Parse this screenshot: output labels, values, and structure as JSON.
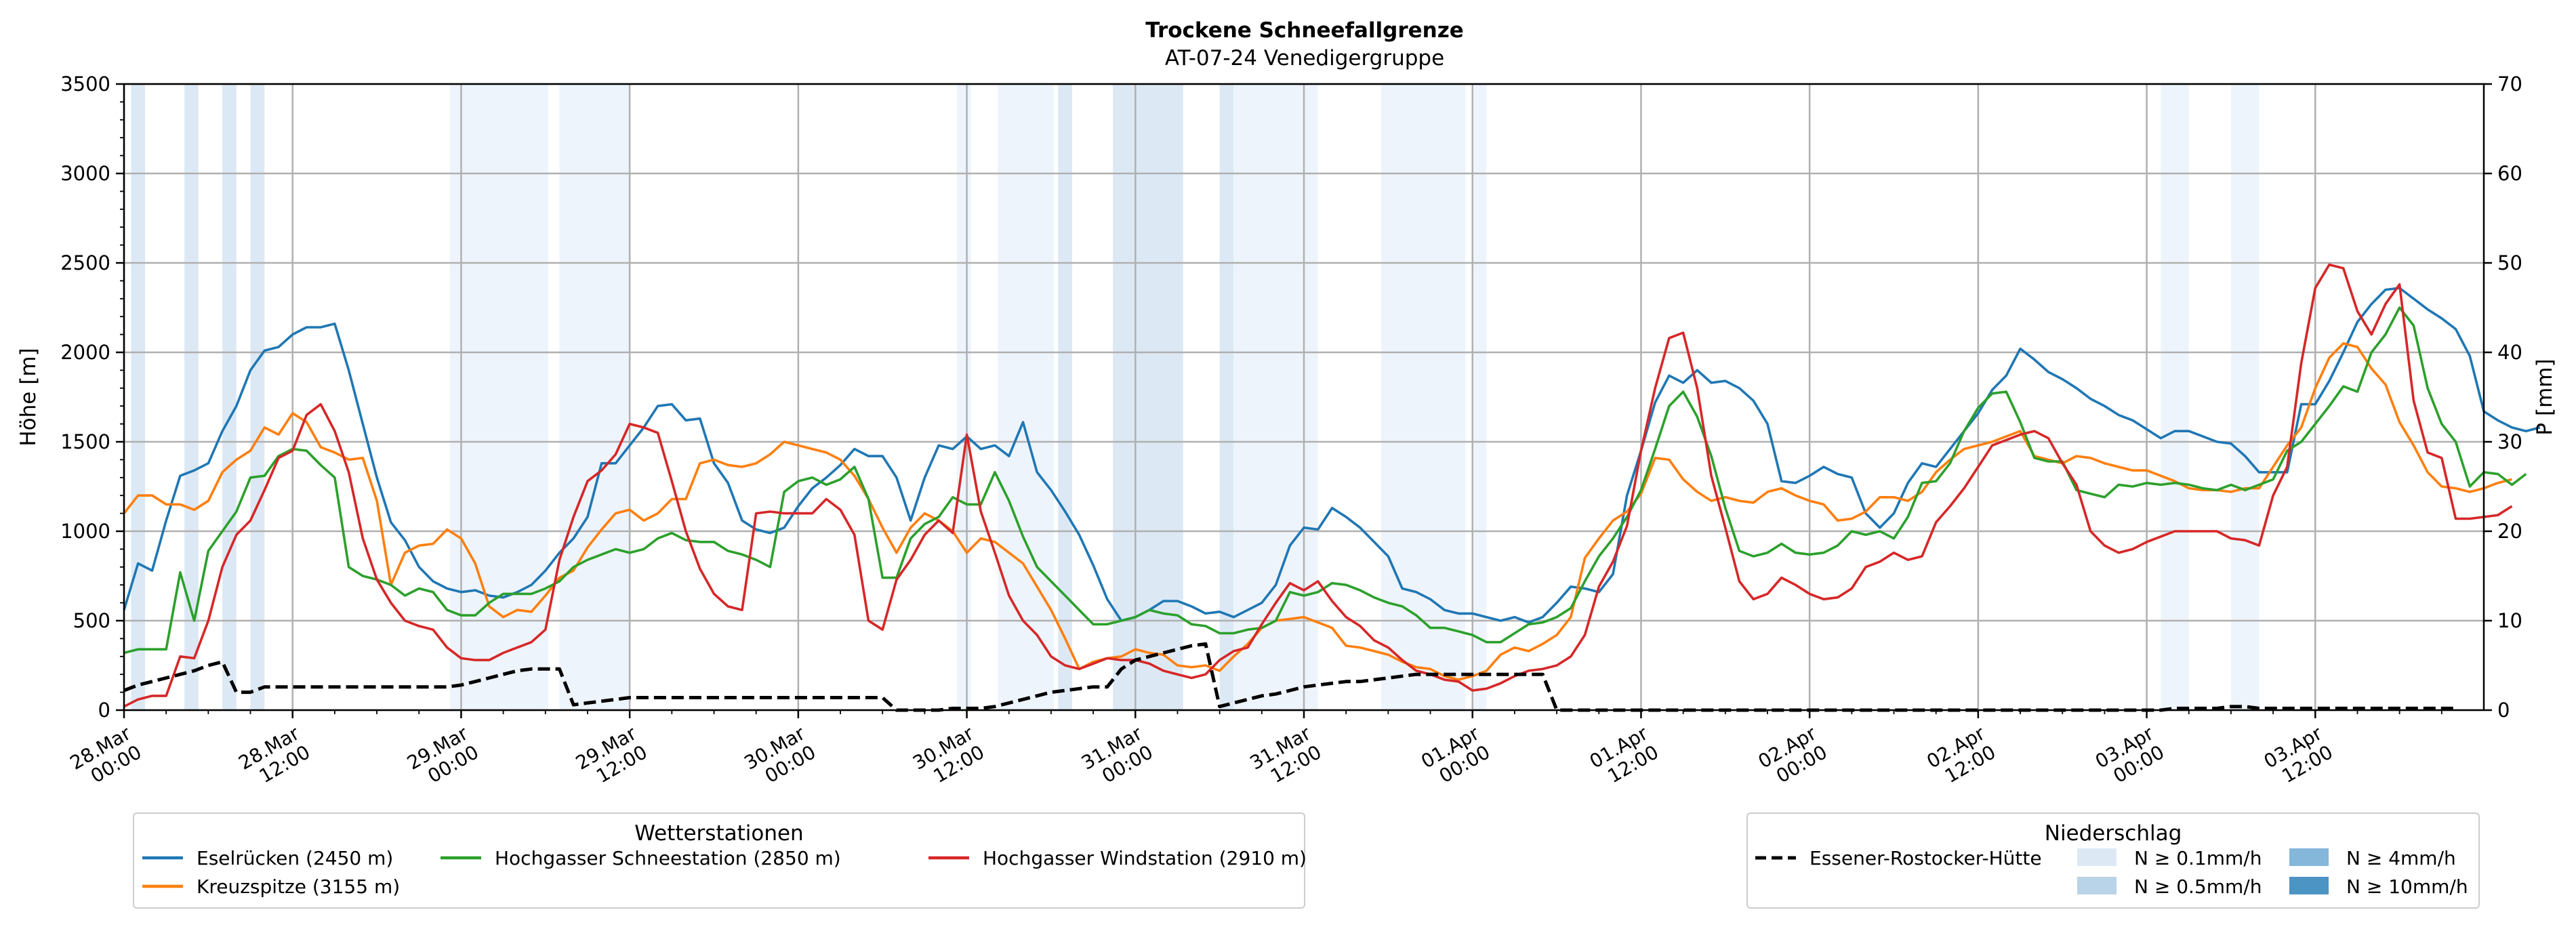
{
  "chart_data": {
    "type": "line",
    "title": "Trockene Schneefallgrenze",
    "subtitle": "AT-07-24 Venedigergruppe",
    "ylabel": "Höhe [m]",
    "y2label": "P [mm]",
    "ylim": [
      0,
      3500
    ],
    "y2lim": [
      0,
      70
    ],
    "yticks": [
      0,
      500,
      1000,
      1500,
      2000,
      2500,
      3000,
      3500
    ],
    "y2ticks": [
      0,
      10,
      20,
      30,
      40,
      50,
      60,
      70
    ],
    "x_hours_per_point": 1,
    "x_range_hours": [
      0,
      168
    ],
    "xticks": [
      {
        "h": 0,
        "line1": "28.Mar",
        "line2": "00:00"
      },
      {
        "h": 12,
        "line1": "28.Mar",
        "line2": "12:00"
      },
      {
        "h": 24,
        "line1": "29.Mar",
        "line2": "00:00"
      },
      {
        "h": 36,
        "line1": "29.Mar",
        "line2": "12:00"
      },
      {
        "h": 48,
        "line1": "30.Mar",
        "line2": "00:00"
      },
      {
        "h": 60,
        "line1": "30.Mar",
        "line2": "12:00"
      },
      {
        "h": 72,
        "line1": "31.Mar",
        "line2": "00:00"
      },
      {
        "h": 84,
        "line1": "31.Mar",
        "line2": "12:00"
      },
      {
        "h": 96,
        "line1": "01.Apr",
        "line2": "00:00"
      },
      {
        "h": 108,
        "line1": "01.Apr",
        "line2": "12:00"
      },
      {
        "h": 120,
        "line1": "02.Apr",
        "line2": "00:00"
      },
      {
        "h": 132,
        "line1": "02.Apr",
        "line2": "12:00"
      },
      {
        "h": 144,
        "line1": "03.Apr",
        "line2": "00:00"
      },
      {
        "h": 156,
        "line1": "03.Apr",
        "line2": "12:00"
      }
    ],
    "grid": true,
    "series": [
      {
        "name": "Eselrücken (2450 m)",
        "color": "#1f77b4",
        "start_h": 0,
        "values": [
          560,
          820,
          780,
          1060,
          1310,
          1340,
          1380,
          1560,
          1700,
          1900,
          2010,
          2030,
          2100,
          2140,
          2140,
          2160,
          1900,
          1600,
          1300,
          1050,
          950,
          800,
          720,
          680,
          660,
          670,
          640,
          630,
          660,
          700,
          780,
          880,
          960,
          1080,
          1380,
          1380,
          1480,
          1580,
          1700,
          1710,
          1620,
          1630,
          1380,
          1270,
          1060,
          1010,
          990,
          1020,
          1140,
          1240,
          1300,
          1370,
          1460,
          1420,
          1420,
          1300,
          1060,
          1300,
          1480,
          1460,
          1530,
          1460,
          1480,
          1420,
          1610,
          1330,
          1230,
          1110,
          980,
          810,
          620,
          500,
          520,
          560,
          610,
          610,
          580,
          540,
          550,
          520,
          560,
          600,
          700,
          920,
          1020,
          1010,
          1130,
          1080,
          1020,
          940,
          860,
          680,
          660,
          620,
          560,
          540,
          540,
          520,
          500,
          520,
          490,
          520,
          600,
          690,
          680,
          660,
          760,
          1200,
          1450,
          1720,
          1870,
          1830,
          1900,
          1830,
          1840,
          1800,
          1730,
          1600,
          1280,
          1270,
          1310,
          1360,
          1320,
          1300,
          1100,
          1020,
          1100,
          1270,
          1380,
          1360,
          1460,
          1560,
          1660,
          1790,
          1870,
          2020,
          1960,
          1890,
          1850,
          1800,
          1740,
          1700,
          1650,
          1620,
          1570,
          1520,
          1560,
          1560,
          1530,
          1500,
          1490,
          1420,
          1330,
          1330,
          1330,
          1710,
          1710,
          1840,
          2000,
          2170,
          2270,
          2350,
          2360,
          2300,
          2240,
          2190,
          2130,
          1980,
          1670,
          1620,
          1580,
          1560,
          1580
        ]
      },
      {
        "name": "Kreuzspitze (3155 m)",
        "color": "#ff7f0e",
        "start_h": 0,
        "values": [
          1100,
          1200,
          1200,
          1150,
          1150,
          1120,
          1170,
          1330,
          1400,
          1450,
          1580,
          1540,
          1660,
          1610,
          1470,
          1440,
          1400,
          1410,
          1170,
          700,
          880,
          920,
          930,
          1010,
          960,
          820,
          580,
          520,
          560,
          550,
          640,
          740,
          780,
          910,
          1010,
          1100,
          1120,
          1060,
          1100,
          1180,
          1180,
          1380,
          1400,
          1370,
          1360,
          1380,
          1430,
          1500,
          1480,
          1460,
          1440,
          1400,
          1310,
          1180,
          1020,
          880,
          1020,
          1100,
          1060,
          1000,
          880,
          960,
          940,
          880,
          820,
          690,
          560,
          400,
          230,
          270,
          290,
          300,
          340,
          320,
          310,
          250,
          240,
          250,
          220,
          300,
          370,
          460,
          500,
          510,
          520,
          490,
          460,
          360,
          350,
          330,
          310,
          270,
          240,
          230,
          190,
          170,
          190,
          220,
          310,
          350,
          330,
          370,
          420,
          520,
          850,
          960,
          1060,
          1110,
          1210,
          1410,
          1400,
          1290,
          1220,
          1170,
          1190,
          1170,
          1160,
          1220,
          1240,
          1200,
          1170,
          1150,
          1060,
          1070,
          1110,
          1190,
          1190,
          1170,
          1220,
          1330,
          1400,
          1460,
          1480,
          1500,
          1530,
          1560,
          1420,
          1400,
          1380,
          1420,
          1410,
          1380,
          1360,
          1340,
          1340,
          1310,
          1280,
          1240,
          1230,
          1230,
          1220,
          1240,
          1240,
          1360,
          1480,
          1580,
          1800,
          1970,
          2050,
          2030,
          1910,
          1820,
          1610,
          1480,
          1330,
          1250,
          1240,
          1220,
          1240,
          1270,
          1290
        ]
      },
      {
        "name": "Hochgasser Schneestation (2850 m)",
        "color": "#2ca02c",
        "start_h": 0,
        "values": [
          320,
          340,
          340,
          340,
          770,
          500,
          890,
          1000,
          1110,
          1300,
          1310,
          1420,
          1460,
          1450,
          1370,
          1300,
          800,
          750,
          730,
          700,
          640,
          680,
          660,
          560,
          530,
          530,
          600,
          650,
          650,
          650,
          680,
          720,
          800,
          840,
          870,
          900,
          880,
          900,
          960,
          990,
          950,
          940,
          940,
          890,
          870,
          840,
          800,
          1220,
          1280,
          1300,
          1260,
          1290,
          1360,
          1180,
          740,
          740,
          960,
          1040,
          1080,
          1190,
          1150,
          1150,
          1330,
          1170,
          970,
          800,
          720,
          640,
          560,
          480,
          480,
          500,
          520,
          560,
          540,
          530,
          480,
          470,
          430,
          430,
          450,
          460,
          500,
          660,
          640,
          660,
          710,
          700,
          670,
          630,
          600,
          580,
          530,
          460,
          460,
          440,
          420,
          380,
          380,
          430,
          480,
          490,
          520,
          570,
          720,
          860,
          960,
          1080,
          1230,
          1460,
          1700,
          1780,
          1640,
          1420,
          1130,
          890,
          860,
          880,
          930,
          880,
          870,
          880,
          920,
          1000,
          980,
          1000,
          960,
          1080,
          1270,
          1280,
          1380,
          1560,
          1690,
          1770,
          1780,
          1610,
          1410,
          1390,
          1390,
          1230,
          1210,
          1190,
          1260,
          1250,
          1270,
          1260,
          1270,
          1260,
          1240,
          1230,
          1260,
          1230,
          1260,
          1290,
          1450,
          1500,
          1600,
          1700,
          1810,
          1780,
          2000,
          2100,
          2250,
          2150,
          1800,
          1600,
          1500,
          1250,
          1330,
          1320,
          1260,
          1320
        ]
      },
      {
        "name": "Hochgasser Windstation (2910 m)",
        "color": "#d62728",
        "start_h": 0,
        "values": [
          20,
          60,
          80,
          80,
          300,
          290,
          500,
          800,
          980,
          1060,
          1230,
          1410,
          1450,
          1650,
          1710,
          1560,
          1330,
          960,
          730,
          600,
          500,
          470,
          450,
          350,
          290,
          280,
          280,
          320,
          350,
          380,
          450,
          840,
          1080,
          1280,
          1340,
          1430,
          1600,
          1580,
          1550,
          1280,
          1000,
          790,
          650,
          580,
          560,
          1100,
          1110,
          1100,
          1100,
          1100,
          1180,
          1120,
          980,
          500,
          450,
          730,
          840,
          980,
          1060,
          990,
          1540,
          1110,
          880,
          640,
          500,
          420,
          300,
          250,
          230,
          260,
          290,
          280,
          280,
          260,
          220,
          200,
          180,
          200,
          280,
          330,
          350,
          480,
          600,
          710,
          670,
          720,
          610,
          520,
          470,
          390,
          350,
          280,
          220,
          200,
          170,
          160,
          110,
          120,
          150,
          190,
          220,
          230,
          250,
          300,
          420,
          690,
          830,
          1030,
          1450,
          1800,
          2080,
          2110,
          1800,
          1310,
          1020,
          720,
          620,
          650,
          740,
          700,
          650,
          620,
          630,
          680,
          800,
          830,
          880,
          840,
          860,
          1050,
          1140,
          1240,
          1360,
          1480,
          1510,
          1540,
          1560,
          1520,
          1380,
          1260,
          1000,
          920,
          880,
          900,
          940,
          970,
          1000,
          1000,
          1000,
          1000,
          960,
          950,
          920,
          1200,
          1360,
          1940,
          2360,
          2490,
          2470,
          2230,
          2100,
          2270,
          2380,
          1730,
          1440,
          1410,
          1070,
          1070,
          1080,
          1090,
          1140
        ]
      },
      {
        "name": "Essener-Rostocker-Hütte",
        "color": "#000000",
        "dashed": true,
        "axis": "y2",
        "start_h": 0,
        "values": [
          2.2,
          2.8,
          3.2,
          3.6,
          4.0,
          4.4,
          5.0,
          5.4,
          2.0,
          2.0,
          2.6,
          2.6,
          2.6,
          2.6,
          2.6,
          2.6,
          2.6,
          2.6,
          2.6,
          2.6,
          2.6,
          2.6,
          2.6,
          2.6,
          2.8,
          3.2,
          3.6,
          4.0,
          4.4,
          4.6,
          4.6,
          4.6,
          0.6,
          0.8,
          1.0,
          1.2,
          1.4,
          1.4,
          1.4,
          1.4,
          1.4,
          1.4,
          1.4,
          1.4,
          1.4,
          1.4,
          1.4,
          1.4,
          1.4,
          1.4,
          1.4,
          1.4,
          1.4,
          1.4,
          1.4,
          0,
          0,
          0,
          0,
          0.2,
          0.2,
          0.2,
          0.4,
          0.8,
          1.2,
          1.6,
          2.0,
          2.2,
          2.4,
          2.6,
          2.6,
          4.6,
          5.6,
          6.0,
          6.4,
          6.8,
          7.2,
          7.4,
          0.4,
          0.8,
          1.2,
          1.6,
          1.8,
          2.2,
          2.6,
          2.8,
          3.0,
          3.2,
          3.2,
          3.4,
          3.6,
          3.8,
          4.0,
          4.0,
          4.0,
          4.0,
          4.0,
          4.0,
          4.0,
          4.0,
          4.0,
          4.0,
          0,
          0,
          0,
          0,
          0,
          0,
          0,
          0,
          0,
          0,
          0,
          0,
          0,
          0,
          0,
          0,
          0,
          0,
          0,
          0,
          0,
          0,
          0,
          0,
          0,
          0,
          0,
          0,
          0,
          0,
          0,
          0,
          0,
          0,
          0,
          0,
          0,
          0,
          0,
          0,
          0,
          0,
          0,
          0,
          0.2,
          0.2,
          0.2,
          0.2,
          0.4,
          0.4,
          0.2,
          0.2,
          0.2,
          0.2,
          0.2,
          0.2,
          0.2,
          0.2,
          0.2,
          0.2,
          0.2,
          0.2,
          0.2,
          0.2,
          0.2
        ]
      }
    ],
    "precip_bands": [
      {
        "start_h": 0.5,
        "end_h": 1.5,
        "level": 1
      },
      {
        "start_h": 4.3,
        "end_h": 5.3,
        "level": 1
      },
      {
        "start_h": 7.0,
        "end_h": 8.0,
        "level": 1
      },
      {
        "start_h": 9.0,
        "end_h": 10.0,
        "level": 1
      },
      {
        "start_h": 23.2,
        "end_h": 30.2,
        "level": 0
      },
      {
        "start_h": 31.0,
        "end_h": 36.0,
        "level": 0
      },
      {
        "start_h": 59.3,
        "end_h": 60.3,
        "level": 0
      },
      {
        "start_h": 62.2,
        "end_h": 66.2,
        "level": 0
      },
      {
        "start_h": 66.5,
        "end_h": 67.5,
        "level": 1
      },
      {
        "start_h": 70.4,
        "end_h": 75.4,
        "level": 1
      },
      {
        "start_h": 78.0,
        "end_h": 79.0,
        "level": 1
      },
      {
        "start_h": 79.0,
        "end_h": 85.0,
        "level": 0
      },
      {
        "start_h": 89.5,
        "end_h": 95.5,
        "level": 0
      },
      {
        "start_h": 96.0,
        "end_h": 97.0,
        "level": 0
      },
      {
        "start_h": 145.0,
        "end_h": 147.0,
        "level": 0
      },
      {
        "start_h": 150.0,
        "end_h": 152.0,
        "level": 0
      }
    ],
    "legend_stations": {
      "title": "Wetterstationen",
      "placement": "bottom-left"
    },
    "legend_precip": {
      "title": "Niederschlag",
      "placement": "bottom-right",
      "items": [
        {
          "label": "N ≥ 0.1mm/h",
          "color": "#dce9f5"
        },
        {
          "label": "N ≥ 0.5mm/h",
          "color": "#b9d3e8"
        },
        {
          "label": "N ≥ 4mm/h",
          "color": "#84b7da"
        },
        {
          "label": "N ≥ 10mm/h",
          "color": "#4b94c4"
        }
      ]
    },
    "band_colors": [
      "#eef4fb",
      "#dce9f5",
      "#b9d3e8",
      "#84b7da"
    ]
  }
}
